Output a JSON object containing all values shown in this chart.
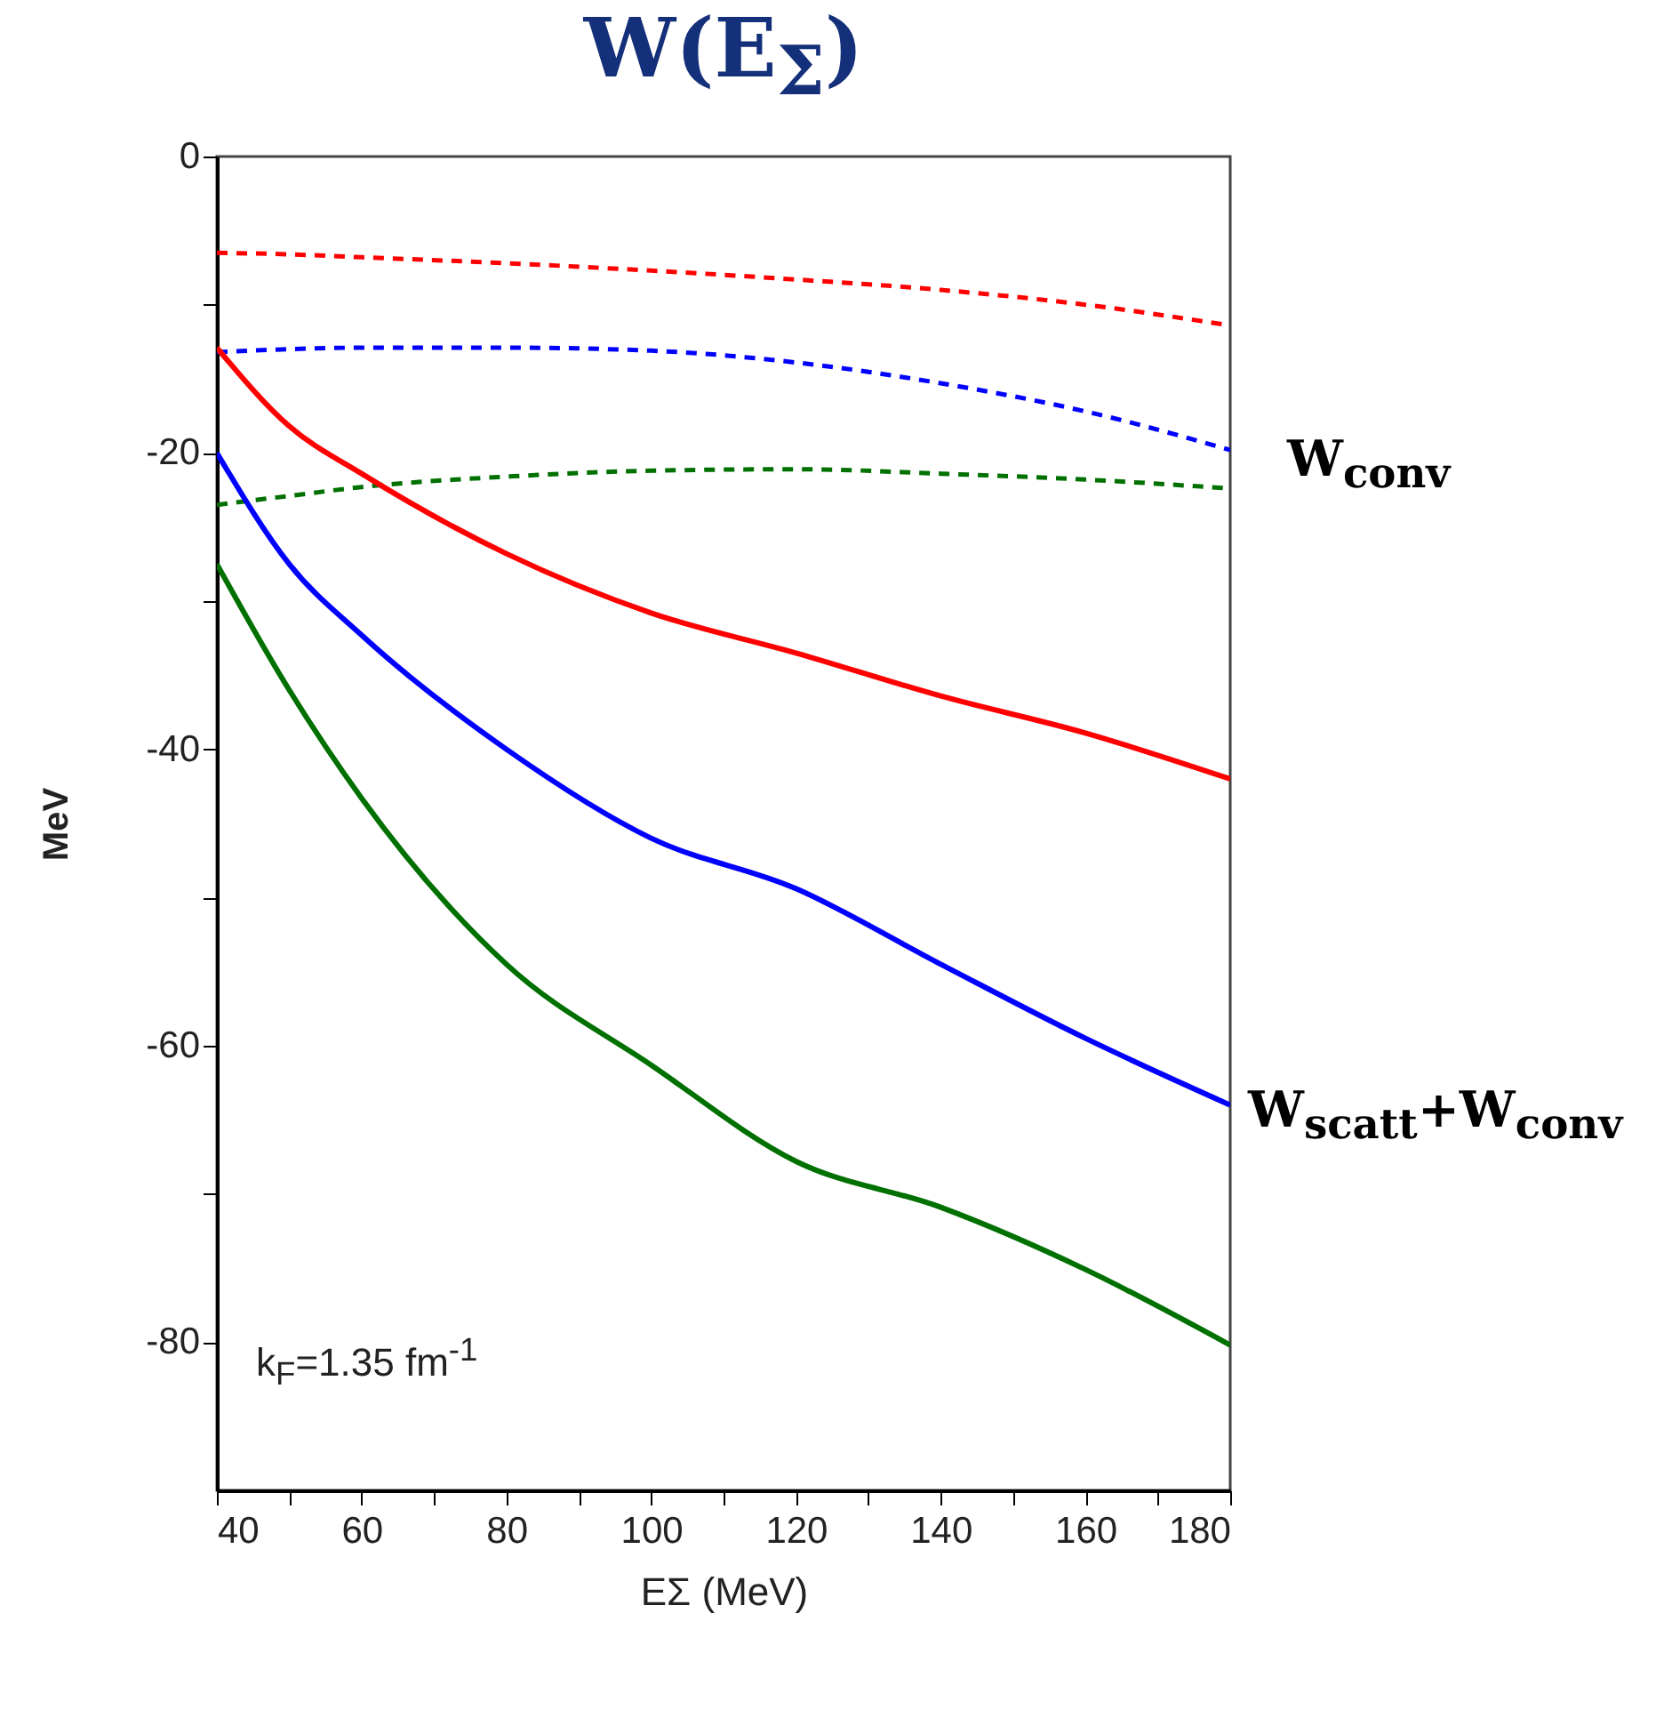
{
  "chart_data": {
    "type": "line",
    "title": "W(E$_{Σ}$)",
    "xlabel": "EΣ (MeV)",
    "ylabel": "MeV",
    "x": [
      40,
      50,
      60,
      80,
      100,
      120,
      140,
      160,
      180
    ],
    "series": [
      {
        "color": "#ff0000",
        "line_style": "dashed",
        "values": [
          -6.5,
          -6.6,
          -6.8,
          -7.2,
          -7.7,
          -8.3,
          -9.0,
          -10.0,
          -11.4
        ]
      },
      {
        "color": "#0000ff",
        "line_style": "dashed",
        "values": [
          -13.2,
          -13.0,
          -12.9,
          -12.9,
          -13.1,
          -13.9,
          -15.3,
          -17.2,
          -19.8
        ]
      },
      {
        "color": "#007000",
        "line_style": "dashed",
        "values": [
          -23.5,
          -22.9,
          -22.3,
          -21.6,
          -21.2,
          -21.1,
          -21.4,
          -21.8,
          -22.4
        ]
      },
      {
        "color": "#ff0000",
        "line_style": "solid",
        "values": [
          -12.9,
          -18.2,
          -21.4,
          -26.8,
          -30.8,
          -33.5,
          -36.4,
          -38.9,
          -42.0
        ]
      },
      {
        "color": "#0000ff",
        "line_style": "solid",
        "values": [
          -20.0,
          -27.5,
          -32.3,
          -40.0,
          -46.0,
          -49.4,
          -54.5,
          -59.5,
          -64.0
        ]
      },
      {
        "color": "#007000",
        "line_style": "solid",
        "values": [
          -27.5,
          -36.0,
          -43.3,
          -54.5,
          -61.3,
          -67.8,
          -70.9,
          -75.1,
          -80.2
        ]
      }
    ],
    "xlim": [
      40,
      180
    ],
    "xticks": [
      40,
      {
        "value": 50,
        "label": null
      },
      60,
      {
        "value": 70,
        "label": null
      },
      80,
      {
        "value": 90,
        "label": null
      },
      100,
      {
        "value": 110,
        "label": null
      },
      120,
      {
        "value": 130,
        "label": null
      },
      140,
      {
        "value": 150,
        "label": null
      },
      160,
      {
        "value": 170,
        "label": null
      },
      180
    ],
    "ylim": [
      -90,
      0
    ],
    "yticks": [
      0,
      {
        "value": -10,
        "label": null
      },
      -20,
      {
        "value": -30,
        "label": null
      },
      -40,
      {
        "value": -50,
        "label": null
      },
      -60,
      {
        "value": -70,
        "label": null
      },
      -80
    ],
    "annotations": [
      {
        "text": "W$_{conv}$",
        "x": 180,
        "y": -20
      },
      {
        "text": "W$_{scatt}$+W$_{conv}$",
        "x": 180,
        "y": -64
      },
      "k$_{F}$=1.35 fm$^{-1}$"
    ],
    "grid": false,
    "marker": "none"
  }
}
